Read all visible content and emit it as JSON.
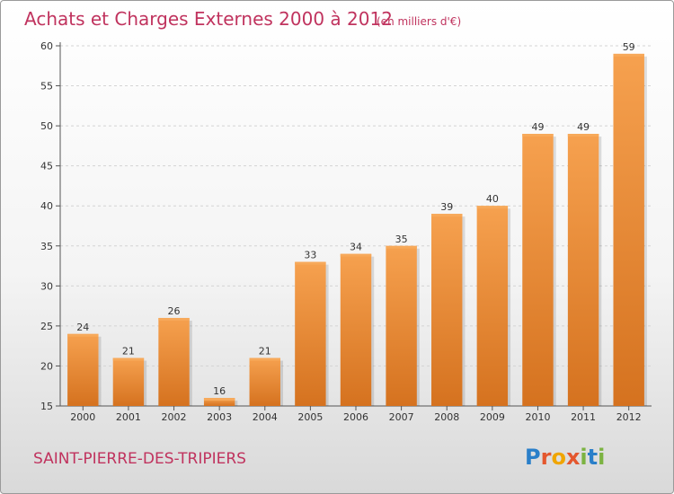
{
  "chart_data": {
    "type": "bar",
    "title": "Achats et Charges Externes 2000 à 2012",
    "subtitle": "(en milliers d'€)",
    "categories": [
      "2000",
      "2001",
      "2002",
      "2003",
      "2004",
      "2005",
      "2006",
      "2007",
      "2008",
      "2009",
      "2010",
      "2011",
      "2012"
    ],
    "values": [
      24,
      21,
      26,
      16,
      21,
      33,
      34,
      35,
      39,
      40,
      49,
      49,
      59
    ],
    "ylim": [
      15,
      60
    ],
    "yticks": [
      15,
      20,
      25,
      30,
      35,
      40,
      45,
      50,
      55,
      60
    ],
    "grid": true,
    "bar_color": "#ef8a2e",
    "bar_highlight": "#f7a95a",
    "bar_shadow": "#c46a1c"
  },
  "footer": {
    "commune": "SAINT-PIERRE-DES-TRIPIERS",
    "logo": "Proxiti"
  }
}
